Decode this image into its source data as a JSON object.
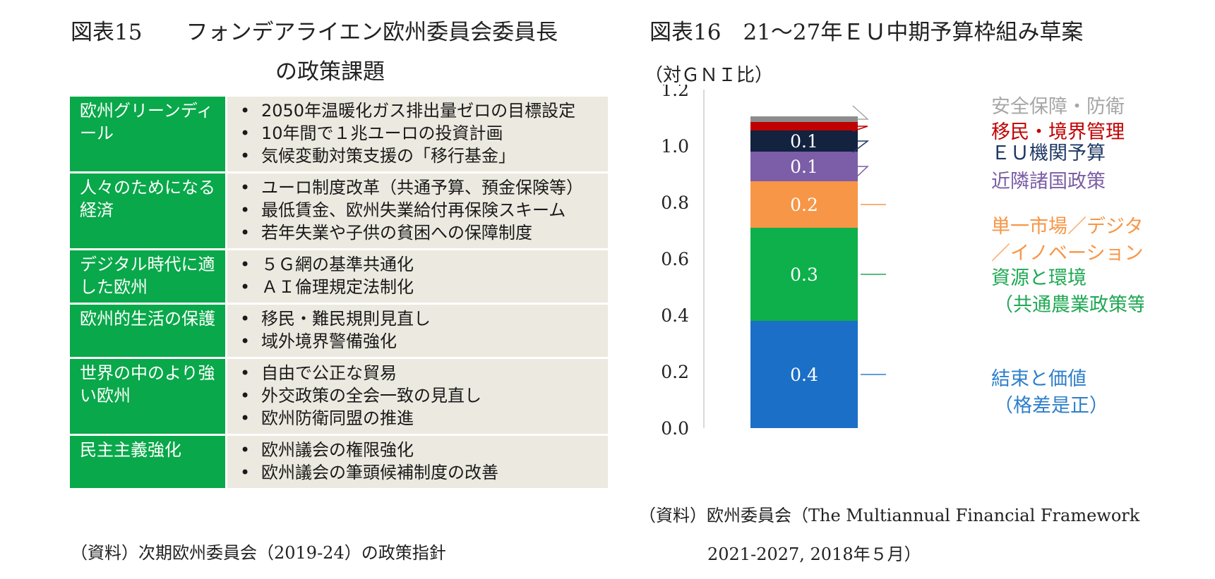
{
  "figure15": {
    "title_line1": "図表15　　フォンデアライエン欧州委員会委員長",
    "title_line2": "の政策課題",
    "rows": [
      {
        "category": "欧州グリーンディール",
        "items": [
          "2050年温暖化ガス排出量ゼロの目標設定",
          "10年間で１兆ユーロの投資計画",
          "気候変動対策支援の「移行基金」"
        ]
      },
      {
        "category": "人々のためになる経済",
        "items": [
          "ユーロ制度改革（共通予算、預金保険等）",
          "最低賃金、欧州失業給付再保険スキーム",
          "若年失業や子供の貧困への保障制度"
        ]
      },
      {
        "category": "デジタル時代に適した欧州",
        "items": [
          "５Ｇ網の基準共通化",
          "ＡＩ倫理規定法制化"
        ]
      },
      {
        "category": "欧州的生活の保護",
        "items": [
          "移民・難民規則見直し",
          "域外境界警備強化"
        ]
      },
      {
        "category": "世界の中のより強い欧州",
        "items": [
          "自由で公正な貿易",
          "外交政策の全会一致の見直し",
          "欧州防衛同盟の推進"
        ]
      },
      {
        "category": "民主主義強化",
        "items": [
          "欧州議会の権限強化",
          "欧州議会の筆頭候補制度の改善"
        ]
      }
    ],
    "source": "（資料）次期欧州委員会（2019-24）の政策指針"
  },
  "figure16": {
    "title": "図表16　21～27年ＥＵ中期予算枠組み草案",
    "unit_label": "（対ＧＮＩ比）",
    "source_line1": "（資料）欧州委員会（The Multiannual Financial Framework",
    "source_line2": "2021-2027, 2018年５月）"
  },
  "chart_data": {
    "type": "bar",
    "stacked": true,
    "title": "図表16　21～27年ＥＵ中期予算枠組み草案",
    "ylabel": "（対ＧＮＩ比）",
    "xlabel": "",
    "ylim": [
      0,
      1.2
    ],
    "yticks": [
      0.0,
      0.2,
      0.4,
      0.6,
      0.8,
      1.0,
      1.2
    ],
    "ytick_labels": [
      "0.0",
      "0.2",
      "0.4",
      "0.6",
      "0.8",
      "1.0",
      "1.2"
    ],
    "grid": false,
    "legend": "right, leader lines",
    "series": [
      {
        "name": "結束と価値（格差是正）",
        "label_lines": [
          "結束と価値",
          "（格差是正）"
        ],
        "value": 0.38,
        "data_label": "0.4",
        "color": "#1b6fc6",
        "label_color": "#2e7fc9"
      },
      {
        "name": "資源と環境（共通農業政策等）",
        "label_lines": [
          "資源と環境",
          "（共通農業政策等）"
        ],
        "value": 0.33,
        "data_label": "0.3",
        "color": "#0db04b",
        "label_color": "#1fa853"
      },
      {
        "name": "単一市場／デジタル／イノベーション",
        "label_lines": [
          "単一市場／デジタル",
          "／イノベーション"
        ],
        "value": 0.165,
        "data_label": "0.2",
        "color": "#f79646",
        "label_color": "#f79646"
      },
      {
        "name": "近隣諸国政策",
        "label_lines": [
          "近隣諸国政策"
        ],
        "value": 0.105,
        "data_label": "0.1",
        "color": "#7b5ea7",
        "label_color": "#7b5ea7"
      },
      {
        "name": "ＥＵ機関予算",
        "label_lines": [
          "ＥＵ機関予算"
        ],
        "value": 0.075,
        "data_label": "0.1",
        "color": "#12223f",
        "label_color": "#1f3864"
      },
      {
        "name": "移民・境界管理",
        "label_lines": [
          "移民・境界管理"
        ],
        "value": 0.03,
        "data_label": "",
        "color": "#c00000",
        "label_color": "#c00000"
      },
      {
        "name": "安全保障・防衛",
        "label_lines": [
          "安全保障・防衛"
        ],
        "value": 0.02,
        "data_label": "",
        "color": "#8c8c8c",
        "label_color": "#a6a6a6"
      }
    ]
  }
}
